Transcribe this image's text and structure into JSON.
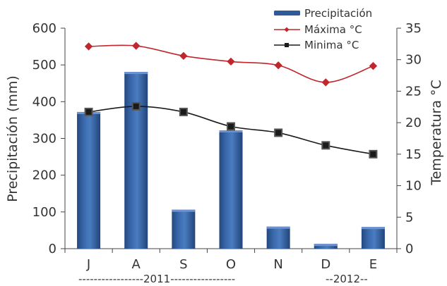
{
  "chart_data": {
    "type": "bar",
    "categories": [
      "J",
      "A",
      "S",
      "O",
      "N",
      "D",
      "E"
    ],
    "series": [
      {
        "name": "Precipitación",
        "type": "bar",
        "axis": "left",
        "color": "#2e5a99",
        "values": [
          372,
          481,
          106,
          322,
          60,
          13,
          59
        ]
      },
      {
        "name": "Máxima °C",
        "type": "line",
        "axis": "right",
        "color": "#c0262c",
        "marker": "diamond",
        "values": [
          32.1,
          32.2,
          30.6,
          29.7,
          29.1,
          26.4,
          29.0
        ]
      },
      {
        "name": "Minima °C",
        "type": "line",
        "axis": "right",
        "color": "#1a1a1a",
        "marker": "square",
        "values": [
          21.7,
          22.6,
          21.7,
          19.4,
          18.4,
          16.4,
          15.0
        ]
      }
    ],
    "ylabel_left": "Precipitación (mm)",
    "ylabel_right": "Temperatura °C",
    "ylim_left": [
      0,
      600
    ],
    "yticks_left": [
      "0",
      "100",
      "200",
      "300",
      "400",
      "500",
      "600"
    ],
    "ylim_right": [
      0,
      35
    ],
    "yticks_right": [
      "0",
      "5",
      "10",
      "15",
      "20",
      "25",
      "30",
      "35"
    ],
    "year_labels": [
      "-----------------2011-----------------",
      "--2012--"
    ],
    "grid": false,
    "legend_position": "top-right"
  }
}
